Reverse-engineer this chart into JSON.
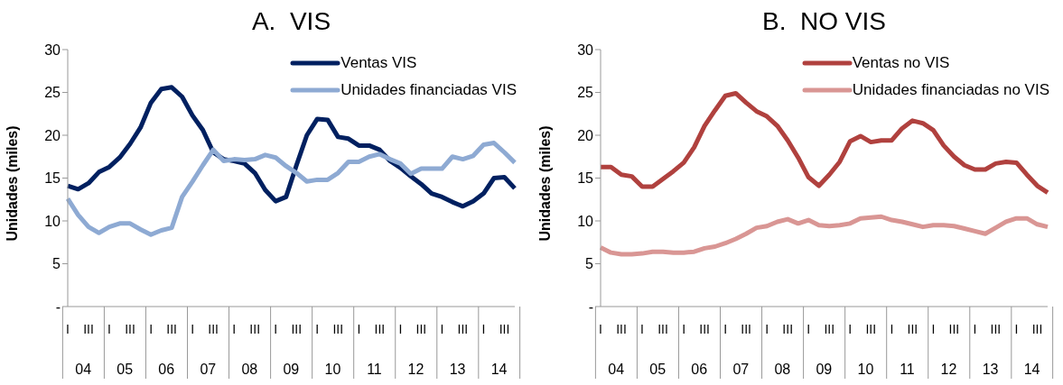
{
  "chart_data": [
    {
      "type": "line",
      "title": "A.  VIS",
      "ylabel": "Unidades (miles)",
      "categories": [
        "I",
        null,
        "III",
        null,
        "I",
        null,
        "III",
        null,
        "I",
        null,
        "III",
        null,
        "I",
        null,
        "III",
        null,
        "I",
        null,
        "III",
        null,
        "I",
        null,
        "III",
        null,
        "I",
        null,
        "III",
        null,
        "I",
        null,
        "III",
        null,
        "I",
        null,
        "III",
        null,
        "I",
        null,
        "III",
        null,
        "I",
        null,
        "III",
        null
      ],
      "annotations": [
        "04",
        "05",
        "06",
        "07",
        "08",
        "09",
        "10",
        "11",
        "12",
        "13",
        "14"
      ],
      "series": [
        {
          "name": "Ventas VIS",
          "color": "#002060",
          "values": [
            14.1,
            13.7,
            14.4,
            15.7,
            16.3,
            17.4,
            19.0,
            20.9,
            23.8,
            25.4,
            25.6,
            24.5,
            22.3,
            20.6,
            18.0,
            17.2,
            17.0,
            16.7,
            15.6,
            13.6,
            12.3,
            12.8,
            16.5,
            20.0,
            21.9,
            21.8,
            19.8,
            19.6,
            18.8,
            18.8,
            18.3,
            17.0,
            16.2,
            15.2,
            14.3,
            13.2,
            12.8,
            12.2,
            11.7,
            12.3,
            13.2,
            15.0,
            15.1,
            13.8
          ]
        },
        {
          "name": "Unidades financiadas VIS",
          "color": "#8eaad3",
          "values": [
            12.6,
            10.7,
            9.3,
            8.6,
            9.3,
            9.7,
            9.7,
            9.0,
            8.4,
            8.9,
            9.2,
            12.8,
            14.6,
            16.5,
            18.3,
            17.0,
            17.2,
            17.1,
            17.2,
            17.7,
            17.4,
            16.4,
            15.6,
            14.6,
            14.8,
            14.8,
            15.6,
            16.9,
            16.9,
            17.5,
            17.8,
            17.2,
            16.7,
            15.5,
            16.1,
            16.1,
            16.1,
            17.5,
            17.2,
            17.6,
            18.9,
            19.1,
            18.0,
            16.8
          ]
        }
      ],
      "ylim": [
        0,
        30
      ],
      "yticks": [
        {
          "value": 0,
          "label": "-"
        },
        5,
        10,
        15,
        20,
        25,
        30
      ],
      "grid": false,
      "legend": "top right",
      "marker": "none",
      "line_style": "solid"
    },
    {
      "type": "line",
      "title": "B.  NO VIS",
      "ylabel": "Unidades (miles)",
      "categories": [
        "I",
        null,
        "III",
        null,
        "I",
        null,
        "III",
        null,
        "I",
        null,
        "III",
        null,
        "I",
        null,
        "III",
        null,
        "I",
        null,
        "III",
        null,
        "I",
        null,
        "III",
        null,
        "I",
        null,
        "III",
        null,
        "I",
        null,
        "III",
        null,
        "I",
        null,
        "III",
        null,
        "I",
        null,
        "III",
        null,
        "I",
        null,
        "III",
        null
      ],
      "annotations": [
        "04",
        "05",
        "06",
        "07",
        "08",
        "09",
        "10",
        "11",
        "12",
        "13",
        "14"
      ],
      "series": [
        {
          "name": "Ventas no VIS",
          "color": "#b0413e",
          "values": [
            16.3,
            16.3,
            15.4,
            15.2,
            14.0,
            14.0,
            14.9,
            15.8,
            16.8,
            18.6,
            21.1,
            22.9,
            24.6,
            24.9,
            23.8,
            22.8,
            22.2,
            21.1,
            19.4,
            17.4,
            15.1,
            14.1,
            15.4,
            16.9,
            19.3,
            19.9,
            19.2,
            19.4,
            19.4,
            20.8,
            21.7,
            21.4,
            20.6,
            18.8,
            17.5,
            16.5,
            16.0,
            16.0,
            16.7,
            16.9,
            16.8,
            15.4,
            14.1,
            13.3
          ]
        },
        {
          "name": "Unidades financiadas no VIS",
          "color": "#d99694",
          "values": [
            6.9,
            6.3,
            6.1,
            6.1,
            6.2,
            6.4,
            6.4,
            6.3,
            6.3,
            6.4,
            6.8,
            7.0,
            7.4,
            7.9,
            8.5,
            9.2,
            9.4,
            9.9,
            10.2,
            9.7,
            10.1,
            9.5,
            9.4,
            9.5,
            9.7,
            10.3,
            10.4,
            10.5,
            10.1,
            9.9,
            9.6,
            9.3,
            9.5,
            9.5,
            9.4,
            9.1,
            8.8,
            8.5,
            9.2,
            9.9,
            10.3,
            10.3,
            9.6,
            9.3
          ]
        }
      ],
      "ylim": [
        0,
        30
      ],
      "yticks": [
        {
          "value": 0,
          "label": "-"
        },
        5,
        10,
        15,
        20,
        25,
        30
      ],
      "grid": false,
      "legend": "top right",
      "marker": "none",
      "line_style": "solid"
    }
  ]
}
